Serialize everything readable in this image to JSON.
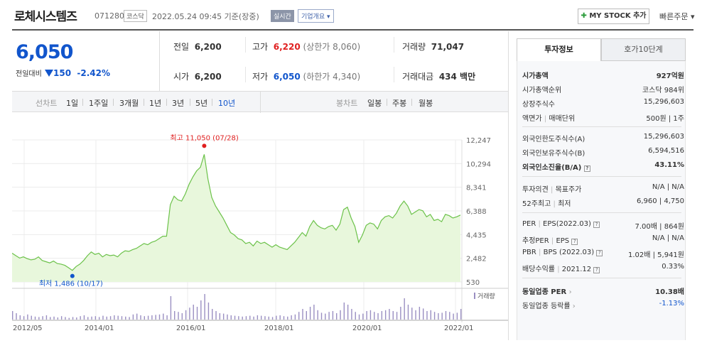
{
  "header": {
    "title": "로체시스템즈",
    "code": "071280",
    "market": "코스닥",
    "datetime": "2022.05.24 09:45 기준(장중)",
    "realtime_label": "실시간",
    "corp_overview_label": "기업개요",
    "mystock_label": "MY STOCK 추가",
    "quick_order_label": "빠른주문"
  },
  "price": {
    "current": "6,050",
    "change_label": "전일대비",
    "change": "150",
    "change_pct": "-2.42%"
  },
  "quotes": {
    "prev_label": "전일",
    "prev": "6,200",
    "high_label": "고가",
    "high": "6,220",
    "upper_limit": "(상한가 8,060)",
    "volume_label": "거래량",
    "volume": "71,047",
    "open_label": "시가",
    "open": "6,200",
    "low_label": "저가",
    "low": "6,050",
    "lower_limit": "(하한가 4,340)",
    "amount_label": "거래대금",
    "amount": "434 백만"
  },
  "periods": {
    "line_label": "선차트",
    "items": [
      "1일",
      "1주일",
      "3개월",
      "1년",
      "3년",
      "5년",
      "10년"
    ],
    "active": "10년",
    "candle_label": "봉차트",
    "candle_items": [
      "일봉",
      "주봉",
      "월봉"
    ]
  },
  "chart_data": {
    "type": "area",
    "y_ticks": [
      "12,247",
      "10,294",
      "8,341",
      "6,388",
      "4,435",
      "2,482",
      "530"
    ],
    "x_ticks": [
      "2012/05",
      "2014/01",
      "2016/01",
      "2018/01",
      "2020/01",
      "2022/01"
    ],
    "ylim": [
      530,
      12247
    ],
    "max_label": "최고 11,050 (07/28)",
    "min_label": "최저 1,486 (10/17)",
    "volume_label": "거래량",
    "series": [
      {
        "values": [
          2900,
          2700,
          2500,
          2600,
          2450,
          2350,
          2400,
          2600,
          2300,
          2200,
          2100,
          2250,
          2050,
          2000,
          1900,
          1700,
          1486,
          1800,
          2000,
          2300,
          2700,
          3000,
          2800,
          2900,
          2600,
          2800,
          2700,
          2750,
          2600,
          2900,
          3100,
          3050,
          3200,
          3300,
          3500,
          3700,
          3600,
          3800,
          3900,
          4100,
          4300,
          4300,
          6900,
          7600,
          7300,
          7200,
          7800,
          8600,
          9200,
          9700,
          10000,
          11050,
          9000,
          7500,
          6800,
          6300,
          5800,
          5200,
          4600,
          4400,
          4100,
          4000,
          3700,
          3800,
          3500,
          3900,
          3700,
          3800,
          3600,
          3400,
          3600,
          3400,
          3300,
          3200,
          3500,
          3800,
          4200,
          4600,
          4300,
          5100,
          5600,
          5200,
          5000,
          4900,
          5100,
          5200,
          4800,
          5300,
          6500,
          6700,
          5800,
          5100,
          3800,
          4400,
          5200,
          5400,
          5300,
          4900,
          5600,
          5900,
          6000,
          5800,
          6200,
          6800,
          7200,
          6800,
          6100,
          6300,
          6500,
          6400,
          5900,
          6100,
          5600,
          5700,
          5500,
          6100,
          6000,
          5800,
          5900,
          6050
        ]
      }
    ],
    "volumes": [
      20,
      15,
      10,
      8,
      12,
      9,
      7,
      6,
      8,
      10,
      6,
      7,
      5,
      8,
      6,
      4,
      6,
      5,
      8,
      10,
      6,
      7,
      8,
      6,
      9,
      7,
      8,
      10,
      9,
      8,
      7,
      6,
      12,
      14,
      10,
      8,
      9,
      10,
      11,
      12,
      14,
      10,
      55,
      20,
      18,
      15,
      22,
      28,
      35,
      30,
      45,
      60,
      40,
      25,
      20,
      15,
      14,
      12,
      10,
      9,
      8,
      7,
      8,
      9,
      7,
      10,
      9,
      8,
      7,
      6,
      9,
      10,
      8,
      7,
      10,
      12,
      18,
      25,
      20,
      30,
      35,
      22,
      16,
      14,
      18,
      20,
      15,
      22,
      40,
      35,
      25,
      18,
      12,
      14,
      20,
      22,
      18,
      15,
      20,
      22,
      25,
      20,
      18,
      30,
      50,
      35,
      28,
      22,
      30,
      26,
      20,
      22,
      18,
      15,
      16,
      20,
      18,
      14,
      16,
      25
    ]
  },
  "info_tabs": [
    "투자정보",
    "호가10단계"
  ],
  "info": {
    "market_cap_label": "시가총액",
    "market_cap": "927억원",
    "market_cap_rank_label": "시가총액순위",
    "market_cap_rank": "코스닥 984위",
    "shares_label": "상장주식수",
    "shares": "15,296,603",
    "par_label": "액면가",
    "lot_label": "매매단위",
    "par_lot": "500원 | 1주",
    "foreign_limit_label": "외국인한도주식수(A)",
    "foreign_limit": "15,296,603",
    "foreign_hold_label": "외국인보유주식수(B)",
    "foreign_hold": "6,594,516",
    "foreign_ratio_label": "외국인소진율(B/A)",
    "foreign_ratio": "43.11%",
    "opinion_label": "투자의견",
    "target_label": "목표주가",
    "opinion_target": "N/A | N/A",
    "w52_label": "52주최고",
    "w52_low_label": "최저",
    "w52": "6,960 | 4,750",
    "per_label": "PER",
    "eps_label": "EPS(2022.03)",
    "per_eps": "7.00배 | 864원",
    "est_per_label": "추정PER",
    "est_eps_label": "EPS",
    "est_per_eps": "N/A | N/A",
    "pbr_label": "PBR",
    "bps_label": "BPS (2022.03)",
    "pbr_bps": "1.02배 | 5,941원",
    "div_label": "배당수익률",
    "div_date": "2021.12",
    "div": "0.33%",
    "ind_per_label": "동일업종 PER",
    "ind_per": "10.38배",
    "ind_chg_label": "동일업종 등락률",
    "ind_chg": "-1.13%"
  },
  "colors": {
    "up": "#e02020",
    "down": "#1155cc",
    "area_line": "#6cc24a",
    "area_fill": "#e8f7dc"
  }
}
